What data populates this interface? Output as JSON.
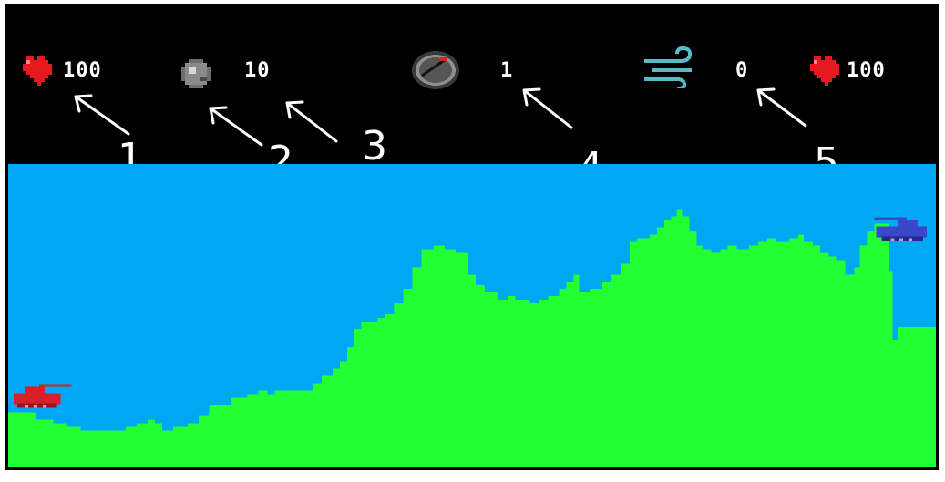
{
  "hud": {
    "player1_health": "100",
    "ammo_count": "10",
    "power_level": "1",
    "wind_value": "0",
    "player2_health": "100"
  },
  "annotations": [
    "1",
    "2",
    "3",
    "4",
    "5"
  ],
  "icons": {
    "heart": "heart-icon",
    "ammo": "cannonball-icon",
    "power": "gauge-icon",
    "wind": "wind-icon",
    "tank": "tank-icon"
  },
  "colors": {
    "sky": "#00a8f4",
    "terrain": "#22ff33",
    "hud_bg": "#000000",
    "heart": "#e8191e",
    "player1_tank": "#d9202a",
    "player2_tank": "#3b46c8"
  }
}
